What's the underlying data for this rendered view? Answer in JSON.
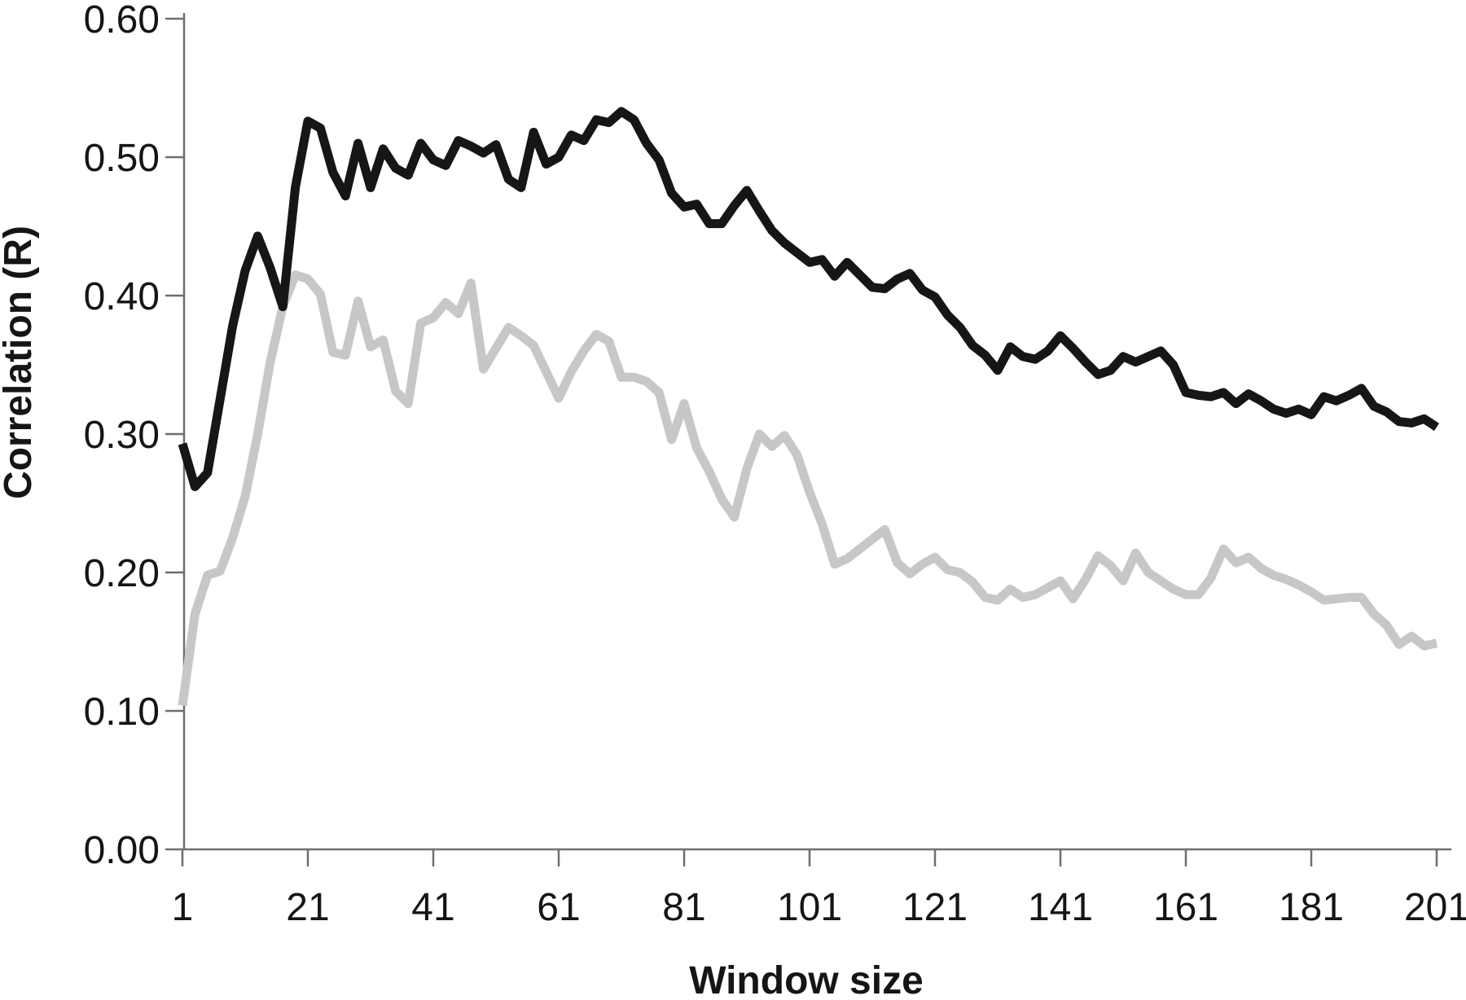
{
  "figure": {
    "background": "#ffffff",
    "axis_color": "#6f6f6f",
    "text_color": "#151515"
  },
  "chart_data": {
    "type": "line",
    "title": "",
    "xlabel": "Window size",
    "ylabel": "Correlation (R)",
    "xlim": [
      1,
      201
    ],
    "ylim": [
      0.0,
      0.6
    ],
    "grid": false,
    "legend": null,
    "x_ticks": [
      1,
      21,
      41,
      61,
      81,
      101,
      121,
      141,
      161,
      181,
      201
    ],
    "y_ticks": [
      {
        "value": 0.0,
        "label": "0.00"
      },
      {
        "value": 0.1,
        "label": "0.10"
      },
      {
        "value": 0.2,
        "label": "0.20"
      },
      {
        "value": 0.3,
        "label": "0.30"
      },
      {
        "value": 0.4,
        "label": "0.40"
      },
      {
        "value": 0.5,
        "label": "0.50"
      },
      {
        "value": 0.6,
        "label": "0.60"
      }
    ],
    "x": [
      1,
      3,
      5,
      7,
      9,
      11,
      13,
      15,
      17,
      19,
      21,
      23,
      25,
      27,
      29,
      31,
      33,
      35,
      37,
      39,
      41,
      43,
      45,
      47,
      49,
      51,
      53,
      55,
      57,
      59,
      61,
      63,
      65,
      67,
      69,
      71,
      73,
      75,
      77,
      79,
      81,
      83,
      85,
      87,
      89,
      91,
      93,
      95,
      97,
      99,
      101,
      103,
      105,
      107,
      109,
      111,
      113,
      115,
      117,
      119,
      121,
      123,
      125,
      127,
      129,
      131,
      133,
      135,
      137,
      139,
      141,
      143,
      145,
      147,
      149,
      151,
      153,
      155,
      157,
      159,
      161,
      163,
      165,
      167,
      169,
      171,
      173,
      175,
      177,
      179,
      181,
      183,
      185,
      187,
      189,
      191,
      193,
      195,
      197,
      199,
      201
    ],
    "series": [
      {
        "name": "gray-line",
        "color": "#c7c7c7",
        "stroke_width": 11,
        "values": [
          0.104,
          0.17,
          0.198,
          0.201,
          0.225,
          0.255,
          0.3,
          0.352,
          0.392,
          0.415,
          0.412,
          0.401,
          0.359,
          0.357,
          0.396,
          0.363,
          0.368,
          0.331,
          0.322,
          0.38,
          0.384,
          0.395,
          0.387,
          0.409,
          0.347,
          0.362,
          0.377,
          0.371,
          0.364,
          0.345,
          0.326,
          0.345,
          0.36,
          0.372,
          0.367,
          0.341,
          0.341,
          0.338,
          0.33,
          0.296,
          0.322,
          0.29,
          0.273,
          0.253,
          0.24,
          0.275,
          0.3,
          0.291,
          0.299,
          0.285,
          0.258,
          0.235,
          0.206,
          0.21,
          0.217,
          0.224,
          0.231,
          0.207,
          0.199,
          0.206,
          0.211,
          0.202,
          0.2,
          0.193,
          0.182,
          0.18,
          0.188,
          0.182,
          0.184,
          0.189,
          0.194,
          0.181,
          0.195,
          0.212,
          0.205,
          0.194,
          0.214,
          0.2,
          0.194,
          0.188,
          0.184,
          0.184,
          0.196,
          0.217,
          0.207,
          0.211,
          0.203,
          0.198,
          0.195,
          0.191,
          0.186,
          0.18,
          0.181,
          0.182,
          0.182,
          0.17,
          0.162,
          0.148,
          0.154,
          0.147,
          0.149
        ]
      },
      {
        "name": "black-line",
        "color": "#161616",
        "stroke_width": 11,
        "values": [
          0.293,
          0.262,
          0.272,
          0.325,
          0.378,
          0.418,
          0.443,
          0.42,
          0.392,
          0.478,
          0.526,
          0.521,
          0.489,
          0.472,
          0.51,
          0.478,
          0.506,
          0.492,
          0.487,
          0.51,
          0.498,
          0.494,
          0.512,
          0.508,
          0.503,
          0.509,
          0.484,
          0.478,
          0.518,
          0.495,
          0.5,
          0.516,
          0.512,
          0.527,
          0.525,
          0.533,
          0.527,
          0.51,
          0.498,
          0.474,
          0.464,
          0.466,
          0.452,
          0.452,
          0.465,
          0.476,
          0.461,
          0.447,
          0.438,
          0.431,
          0.424,
          0.426,
          0.414,
          0.424,
          0.415,
          0.406,
          0.405,
          0.412,
          0.416,
          0.404,
          0.399,
          0.386,
          0.377,
          0.364,
          0.357,
          0.346,
          0.363,
          0.356,
          0.354,
          0.36,
          0.371,
          0.362,
          0.352,
          0.343,
          0.346,
          0.356,
          0.352,
          0.356,
          0.36,
          0.35,
          0.33,
          0.328,
          0.327,
          0.33,
          0.322,
          0.329,
          0.324,
          0.318,
          0.315,
          0.318,
          0.314,
          0.327,
          0.324,
          0.328,
          0.333,
          0.32,
          0.316,
          0.309,
          0.308,
          0.311,
          0.305
        ]
      }
    ]
  }
}
